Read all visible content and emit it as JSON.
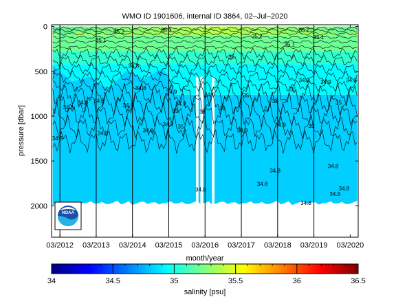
{
  "chart_data": {
    "type": "heatmap",
    "title": "WMO ID 1901606, internal ID 3864, 02–Jul–2020",
    "xlabel": "month/year",
    "ylabel": "pressure [dbar]",
    "x_tick_labels": [
      "03/2012",
      "03/2013",
      "03/2014",
      "03/2015",
      "03/2016",
      "03/2017",
      "03/2018",
      "03/2019",
      "03/2020"
    ],
    "x_ticks": [
      2012.17,
      2013.17,
      2014.17,
      2015.17,
      2016.17,
      2017.17,
      2018.17,
      2019.17,
      2020.17
    ],
    "xlim": [
      2011.94,
      2020.39
    ],
    "y_tick_labels": [
      "0",
      "500",
      "1000",
      "1500",
      "2000"
    ],
    "y_ticks": [
      0,
      500,
      1000,
      1500,
      2000
    ],
    "ylim": [
      2350,
      -20
    ],
    "y_inverted": true,
    "grid": false,
    "profile_times": [
      2012.17,
      2013.17,
      2014.17,
      2015.17,
      2016.17,
      2017.17,
      2018.17,
      2019.17
    ],
    "colorbar": {
      "label": "salinity [psu]",
      "range": [
        34,
        36.5
      ],
      "tick_labels": [
        "34",
        "34.5",
        "35",
        "35.5",
        "36",
        "36.5"
      ],
      "ticks": [
        34,
        34.5,
        35,
        35.5,
        36,
        36.5
      ],
      "colormap": "jet"
    },
    "data_extent": {
      "x": [
        2011.97,
        2020.36
      ],
      "depth_max": 1990
    },
    "gaps": [
      [
        2015.92,
        2015.99
      ],
      [
        2016.04,
        2016.12
      ],
      [
        2016.36,
        2016.43
      ]
    ],
    "salinity_zones": [
      {
        "from_depth": 0,
        "to_depth": 100,
        "salinity": 35.35
      },
      {
        "from_depth": 100,
        "to_depth": 280,
        "salinity": 35.2
      },
      {
        "from_depth": 280,
        "to_depth": 420,
        "salinity": 35.05
      },
      {
        "from_depth": 420,
        "to_depth": 760,
        "salinity": 34.93
      },
      {
        "from_depth": 760,
        "to_depth": 1990,
        "salinity": 34.82
      }
    ],
    "fresh_layer_top": [
      [
        2011.97,
        450
      ],
      [
        2012.5,
        600
      ],
      [
        2013.0,
        550
      ],
      [
        2013.5,
        700
      ],
      [
        2014.0,
        500
      ],
      [
        2014.5,
        600
      ],
      [
        2015.0,
        450
      ],
      [
        2015.3,
        650
      ],
      [
        2015.6,
        1300
      ],
      [
        2015.75,
        1450
      ],
      [
        2015.85,
        1550
      ],
      [
        2016.9,
        1500
      ],
      [
        2017.5,
        1500
      ],
      [
        2018.0,
        1450
      ],
      [
        2018.5,
        1500
      ],
      [
        2019.0,
        1350
      ],
      [
        2019.5,
        1350
      ],
      [
        2020.0,
        1450
      ],
      [
        2020.36,
        1450
      ]
    ],
    "contour_labels": [
      {
        "text": "34.8",
        "x": 2012.4,
        "y": 925
      },
      {
        "text": "34.8",
        "x": 2012.8,
        "y": 870
      },
      {
        "text": "34.8",
        "x": 2012.1,
        "y": 1270
      },
      {
        "text": "34.8",
        "x": 2013.25,
        "y": 850
      },
      {
        "text": "34.8",
        "x": 2013.35,
        "y": 1210
      },
      {
        "text": "34.8",
        "x": 2014.2,
        "y": 460
      },
      {
        "text": "34.8",
        "x": 2014.4,
        "y": 710
      },
      {
        "text": "34.8",
        "x": 2014.05,
        "y": 900
      },
      {
        "text": "34.8",
        "x": 2014.6,
        "y": 1180
      },
      {
        "text": "34.8",
        "x": 2015.15,
        "y": 1110
      },
      {
        "text": "34.9",
        "x": 2015.25,
        "y": 750
      },
      {
        "text": "34.9",
        "x": 2015.5,
        "y": 880
      },
      {
        "text": "35",
        "x": 2015.35,
        "y": 960
      },
      {
        "text": "35",
        "x": 2015.5,
        "y": 1140
      },
      {
        "text": "35",
        "x": 2016.1,
        "y": 975
      },
      {
        "text": "34.8",
        "x": 2016.05,
        "y": 1840
      },
      {
        "text": "35",
        "x": 2016.65,
        "y": 935
      },
      {
        "text": "34.9",
        "x": 2016.3,
        "y": 780
      },
      {
        "text": "34.9",
        "x": 2017.2,
        "y": 1180
      },
      {
        "text": "35",
        "x": 2017.3,
        "y": 790
      },
      {
        "text": "35",
        "x": 2018.1,
        "y": 850
      },
      {
        "text": "34.8",
        "x": 2017.75,
        "y": 1780
      },
      {
        "text": "34.8",
        "x": 2018.1,
        "y": 1630
      },
      {
        "text": "34.9",
        "x": 2018.25,
        "y": 1120
      },
      {
        "text": "35",
        "x": 2018.6,
        "y": 720
      },
      {
        "text": "34.9",
        "x": 2018.9,
        "y": 620
      },
      {
        "text": "34.8",
        "x": 2018.95,
        "y": 1990
      },
      {
        "text": "34.9",
        "x": 2019.5,
        "y": 640
      },
      {
        "text": "34.8",
        "x": 2019.7,
        "y": 1580
      },
      {
        "text": "34.8",
        "x": 2019.75,
        "y": 1890
      },
      {
        "text": "34.8",
        "x": 2020.0,
        "y": 1830
      },
      {
        "text": "35",
        "x": 2019.85,
        "y": 870
      },
      {
        "text": "34.9",
        "x": 2020.2,
        "y": 620
      },
      {
        "text": "35",
        "x": 2019.1,
        "y": 1130
      },
      {
        "text": "35.1",
        "x": 2018.5,
        "y": 220
      },
      {
        "text": "35.1",
        "x": 2019.3,
        "y": 140
      },
      {
        "text": "35.2",
        "x": 2018.9,
        "y": 60
      },
      {
        "text": "35.2",
        "x": 2013.8,
        "y": 80
      },
      {
        "text": "35.1",
        "x": 2013.3,
        "y": 170
      },
      {
        "text": "35.3",
        "x": 2015.1,
        "y": 60
      },
      {
        "text": "35",
        "x": 2016.9,
        "y": 360
      },
      {
        "text": "35.2",
        "x": 2017.6,
        "y": 130
      }
    ],
    "logo": "NOAA"
  },
  "icons": {
    "logo": "noaa-logo"
  }
}
